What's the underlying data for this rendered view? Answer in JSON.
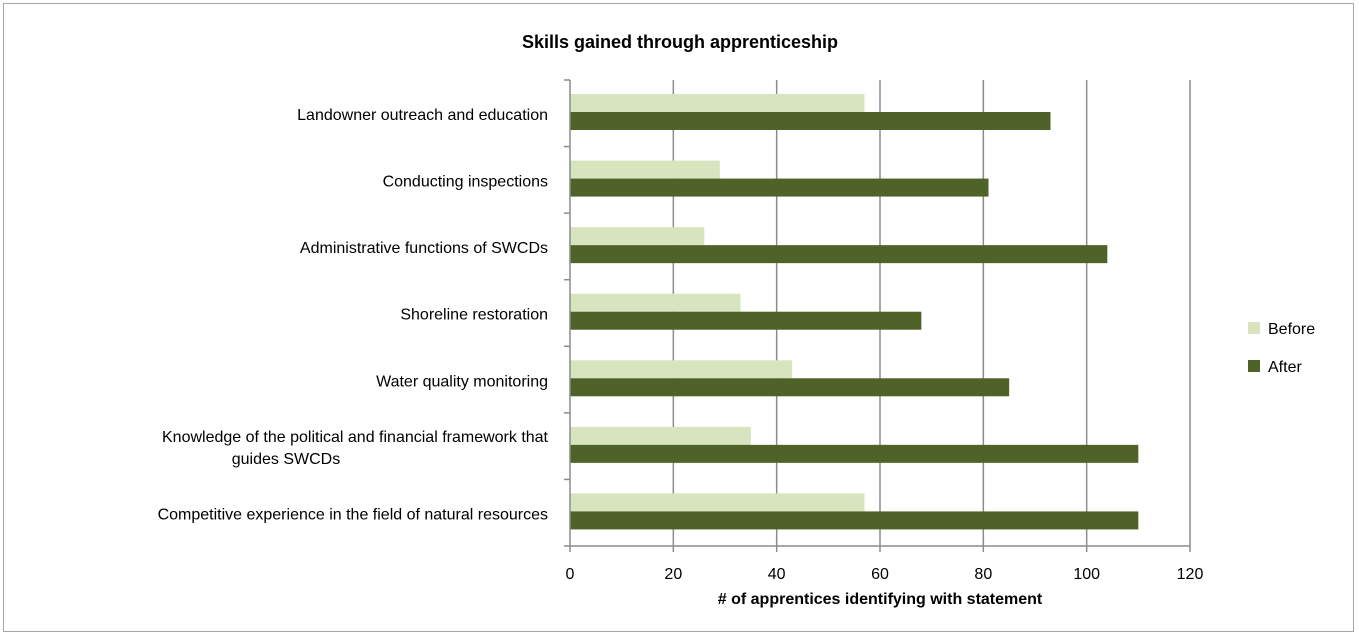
{
  "chart_data": {
    "type": "bar",
    "orientation": "horizontal",
    "title": "Skills gained through apprenticeship",
    "xlabel": "# of apprentices identifying with statement",
    "ylabel": "",
    "xlim": [
      0,
      120
    ],
    "ticks": [
      0,
      20,
      40,
      60,
      80,
      100,
      120
    ],
    "grid": true,
    "legend_position": "right",
    "categories": [
      [
        "Landowner outreach and education"
      ],
      [
        "Conducting inspections"
      ],
      [
        "Administrative functions of SWCDs"
      ],
      [
        "Shoreline restoration"
      ],
      [
        "Water quality monitoring"
      ],
      [
        "Knowledge of the political and financial framework that",
        "guides SWCDs"
      ],
      [
        "Competitive experience in the field of natural resources"
      ]
    ],
    "series": [
      {
        "name": "Before",
        "color": "#d7e4bd",
        "values": [
          57,
          29,
          26,
          33,
          43,
          35,
          57
        ]
      },
      {
        "name": "After",
        "color": "#4f6228",
        "values": [
          93,
          81,
          104,
          68,
          85,
          110,
          110
        ]
      }
    ]
  }
}
